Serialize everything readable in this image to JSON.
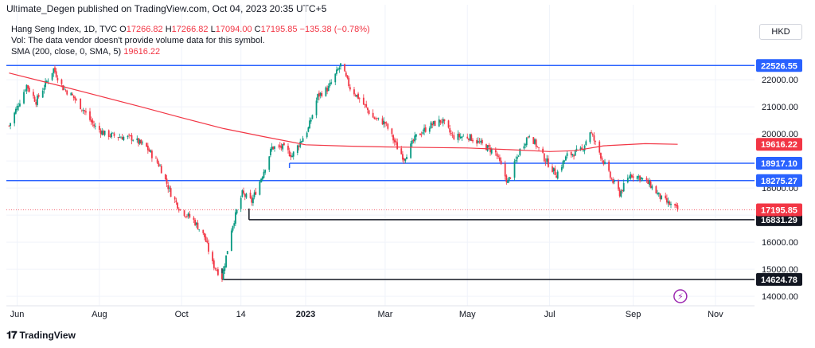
{
  "header": {
    "publisher": "Ultimate_Degen",
    "published_text": "published on TradingView.com, Oct 04, 2023 20:35 UTC+5"
  },
  "legend": {
    "symbol": "Hang Seng Index, 1D, TVC",
    "open_label": "O",
    "open": "17266.82",
    "high_label": "H",
    "high": "17266.82",
    "low_label": "L",
    "low": "17094.00",
    "close_label": "C",
    "close": "17195.85",
    "change": "−135.38 (−0.78%)",
    "vol_text": "Vol: The data vendor doesn't provide volume data for this symbol.",
    "sma_label": "SMA (200, close, 0, SMA, 5)",
    "sma_value": "19616.22"
  },
  "currency": "HKD",
  "footer": {
    "brand": "TradingView",
    "logo": "tradingview-logo-icon"
  },
  "colors": {
    "up": "#089981",
    "down": "#f23645",
    "sma": "#f23645",
    "resistance": "#2962ff",
    "support": "#131722",
    "current_price": "#f23645"
  },
  "chart_data": {
    "type": "candlestick",
    "title": "Hang Seng Index, 1D, TVC",
    "x_ticks": [
      "Jun",
      "Aug",
      "Oct",
      "14",
      "2023",
      "Mar",
      "May",
      "Jul",
      "Sep",
      "Nov"
    ],
    "y_ticks": [
      14000,
      15000,
      16000,
      17000,
      18000,
      19000,
      20000,
      21000,
      22000
    ],
    "ylim": [
      13650,
      23300
    ],
    "price_path": [
      [
        "2022-05-26",
        20300
      ],
      [
        "2022-06-08",
        21800
      ],
      [
        "2022-06-15",
        21200
      ],
      [
        "2022-06-28",
        22400
      ],
      [
        "2022-07-05",
        21700
      ],
      [
        "2022-07-12",
        21400
      ],
      [
        "2022-07-20",
        20900
      ],
      [
        "2022-07-28",
        20300
      ],
      [
        "2022-08-05",
        20000
      ],
      [
        "2022-08-15",
        19900
      ],
      [
        "2022-08-25",
        19850
      ],
      [
        "2022-09-05",
        19500
      ],
      [
        "2022-09-15",
        18800
      ],
      [
        "2022-09-23",
        17800
      ],
      [
        "2022-09-30",
        17200
      ],
      [
        "2022-10-10",
        16800
      ],
      [
        "2022-10-18",
        16200
      ],
      [
        "2022-10-24",
        15200
      ],
      [
        "2022-10-31",
        14700
      ],
      [
        "2022-11-07",
        16500
      ],
      [
        "2022-11-15",
        17800
      ],
      [
        "2022-11-22",
        17500
      ],
      [
        "2022-11-30",
        18500
      ],
      [
        "2022-12-07",
        19500
      ],
      [
        "2022-12-15",
        19500
      ],
      [
        "2022-12-22",
        19200
      ],
      [
        "2023-01-03",
        20200
      ],
      [
        "2023-01-10",
        21400
      ],
      [
        "2023-01-18",
        21700
      ],
      [
        "2023-01-27",
        22550
      ],
      [
        "2023-02-03",
        21700
      ],
      [
        "2023-02-10",
        21300
      ],
      [
        "2023-02-20",
        20600
      ],
      [
        "2023-03-01",
        20400
      ],
      [
        "2023-03-10",
        19500
      ],
      [
        "2023-03-15",
        19100
      ],
      [
        "2023-03-24",
        19900
      ],
      [
        "2023-04-03",
        20300
      ],
      [
        "2023-04-12",
        20500
      ],
      [
        "2023-04-20",
        19900
      ],
      [
        "2023-05-02",
        19900
      ],
      [
        "2023-05-12",
        19600
      ],
      [
        "2023-05-22",
        19300
      ],
      [
        "2023-05-31",
        18200
      ],
      [
        "2023-06-09",
        19400
      ],
      [
        "2023-06-16",
        20000
      ],
      [
        "2023-06-27",
        19100
      ],
      [
        "2023-07-06",
        18500
      ],
      [
        "2023-07-14",
        19200
      ],
      [
        "2023-07-25",
        19400
      ],
      [
        "2023-07-31",
        20100
      ],
      [
        "2023-08-08",
        19200
      ],
      [
        "2023-08-15",
        18400
      ],
      [
        "2023-08-22",
        17800
      ],
      [
        "2023-08-30",
        18500
      ],
      [
        "2023-09-06",
        18400
      ],
      [
        "2023-09-14",
        18100
      ],
      [
        "2023-09-22",
        17600
      ],
      [
        "2023-09-28",
        17400
      ],
      [
        "2023-10-04",
        17195.85
      ]
    ],
    "sma_path": [
      [
        "2022-05-26",
        22250
      ],
      [
        "2022-07-01",
        21800
      ],
      [
        "2022-08-01",
        21400
      ],
      [
        "2022-09-01",
        21000
      ],
      [
        "2022-10-01",
        20600
      ],
      [
        "2022-11-01",
        20200
      ],
      [
        "2022-12-01",
        19900
      ],
      [
        "2023-01-01",
        19600
      ],
      [
        "2023-02-01",
        19550
      ],
      [
        "2023-03-01",
        19520
      ],
      [
        "2023-04-01",
        19500
      ],
      [
        "2023-05-01",
        19480
      ],
      [
        "2023-06-01",
        19420
      ],
      [
        "2023-07-01",
        19350
      ],
      [
        "2023-07-20",
        19380
      ],
      [
        "2023-08-10",
        19560
      ],
      [
        "2023-09-10",
        19640
      ],
      [
        "2023-10-04",
        19616.22
      ]
    ],
    "horizontal_lines": [
      {
        "value": 22526.55,
        "label": "22526.55",
        "role": "resistance",
        "start": "2022-05-24",
        "width": 1.5
      },
      {
        "value": 18917.1,
        "label": "18917.10",
        "role": "resistance",
        "start": "2022-12-20",
        "width": 1.5
      },
      {
        "value": 18275.27,
        "label": "18275.27",
        "role": "resistance",
        "start": "2022-05-24",
        "width": 1.5
      },
      {
        "value": 16831.29,
        "label": "16831.29",
        "role": "support",
        "start": "2022-11-20",
        "width": 1.5
      },
      {
        "value": 14624.78,
        "label": "14624.78",
        "role": "support",
        "start": "2022-10-31",
        "width": 1.5
      }
    ],
    "current_price": {
      "value": 17195.85,
      "label": "17195.85"
    },
    "sma_value": {
      "value": 19616.22,
      "label": "19616.22"
    }
  }
}
